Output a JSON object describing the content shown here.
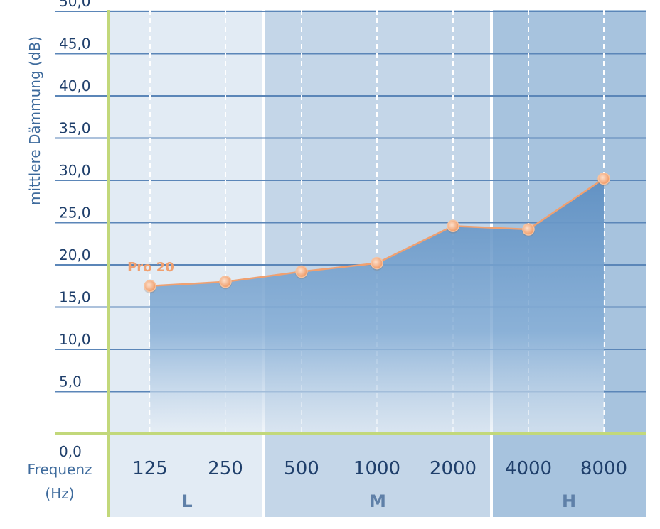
{
  "chart_data": {
    "type": "area",
    "ylabel": "mittlere Dämmung (dB)",
    "xlabel_line1": "Frequenz",
    "xlabel_line2": "(Hz)",
    "ylim": [
      0,
      50
    ],
    "yticks": [
      "0,0",
      "5,0",
      "10,0",
      "15,0",
      "20,0",
      "25,0",
      "30,0",
      "35,0",
      "40,0",
      "45,0",
      "50,0"
    ],
    "categories": [
      "125",
      "250",
      "500",
      "1000",
      "2000",
      "4000",
      "8000"
    ],
    "bands": [
      {
        "label": "L",
        "categories": [
          "125",
          "250"
        ],
        "color": "#e2ebf4"
      },
      {
        "label": "M",
        "categories": [
          "500",
          "1000",
          "2000"
        ],
        "color": "#c4d6e8"
      },
      {
        "label": "H",
        "categories": [
          "4000",
          "8000"
        ],
        "color": "#a7c3de"
      }
    ],
    "series": [
      {
        "name": "Pro 20",
        "values": [
          17.5,
          18.0,
          19.2,
          20.2,
          24.6,
          24.2,
          30.2
        ],
        "line_color": "#f0a070",
        "fill_color": "#5e8fc2"
      }
    ],
    "grid": true,
    "colors": {
      "axis": "#c2d87a",
      "grid": "#5b86b8",
      "text": "#1f3f6b"
    }
  }
}
